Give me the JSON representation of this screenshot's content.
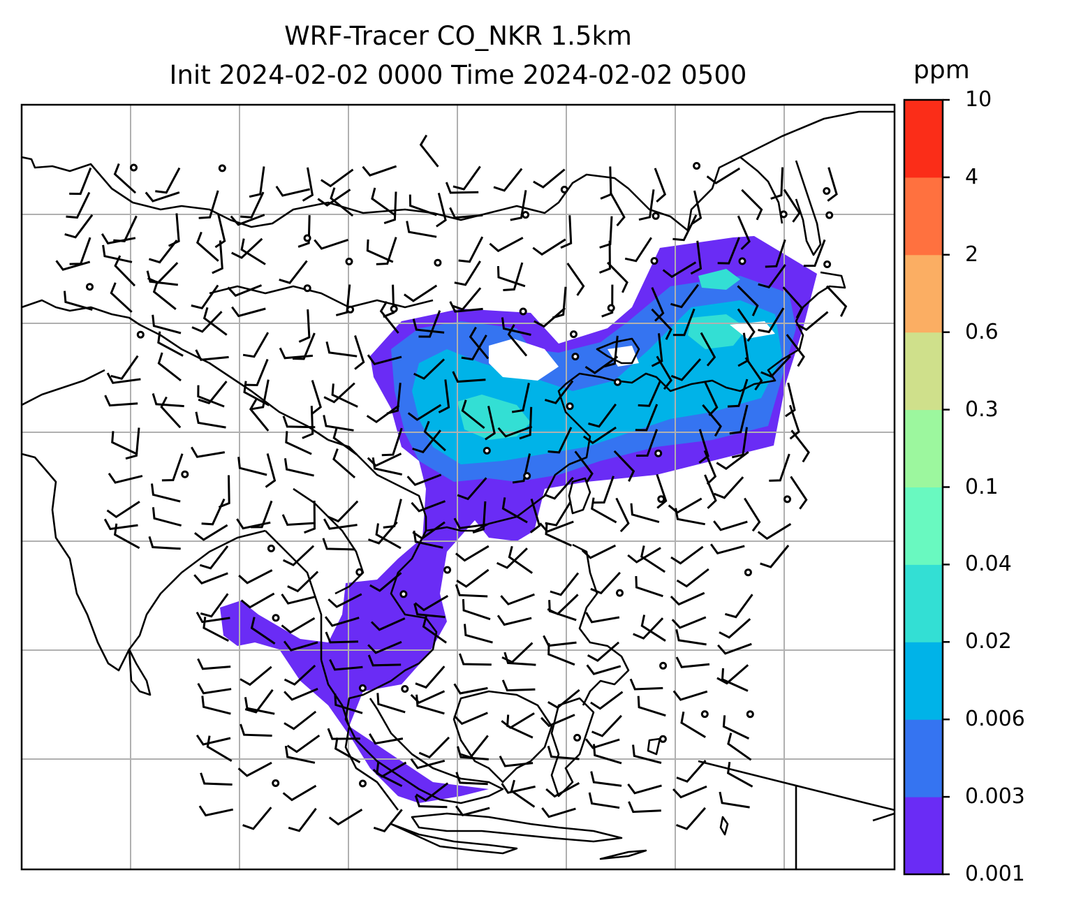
{
  "title": {
    "line1": "WRF-Tracer CO_NKR 1.5km",
    "line2": "Init 2024-02-02 0000 Time 2024-02-02 0500"
  },
  "colorbar": {
    "unit": "ppm",
    "levels": [
      "0.001",
      "0.003",
      "0.006",
      "0.02",
      "0.04",
      "0.1",
      "0.3",
      "0.6",
      "2",
      "4",
      "10"
    ],
    "colors": [
      "#6a2cf5",
      "#3574f1",
      "#00b3e8",
      "#33dfd4",
      "#69f9c0",
      "#9cf79e",
      "#cfe08b",
      "#fbae63",
      "#ff713f",
      "#fb2d18"
    ]
  },
  "map": {
    "field": "CO_NKR tracer concentration",
    "gridlines": true
  }
}
